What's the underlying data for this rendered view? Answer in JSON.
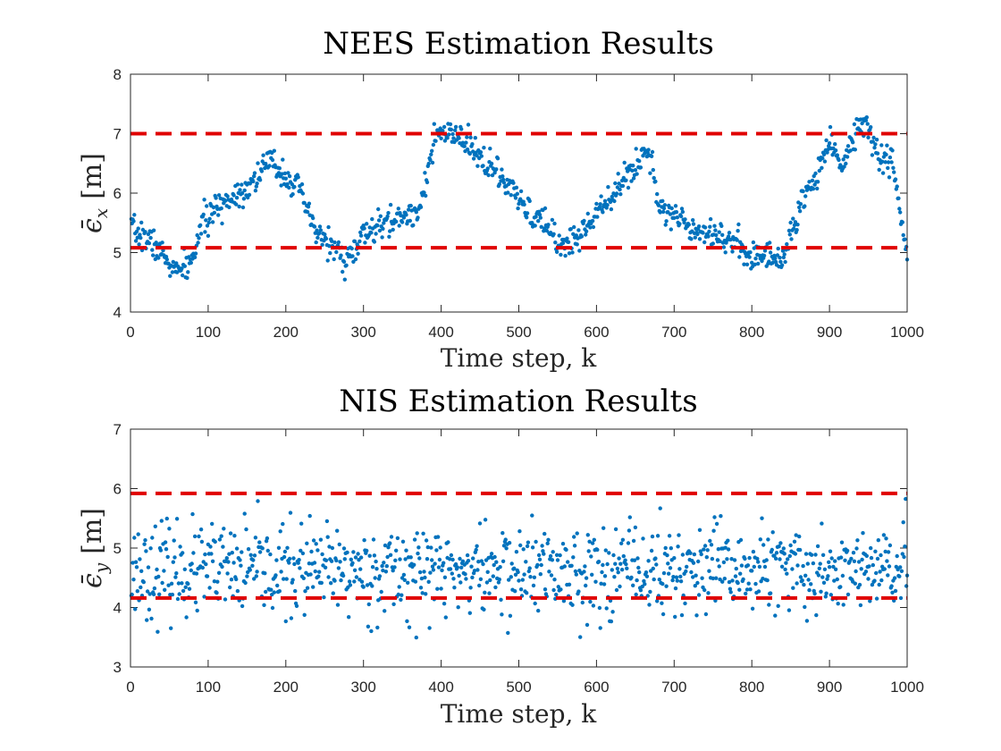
{
  "colors": {
    "points": "#0072BD",
    "bounds": "#E00000",
    "axis": "#262626"
  },
  "chart_data": [
    {
      "type": "scatter",
      "title": "NEES Estimation Results",
      "xlabel": "Time step, k",
      "ylabel": {
        "symbol": "ϵ̄",
        "subscript": "x",
        "unit": "[m]"
      },
      "xlim": [
        0,
        1000
      ],
      "ylim": [
        4,
        8
      ],
      "xticks": [
        "0",
        "100",
        "200",
        "300",
        "400",
        "500",
        "600",
        "700",
        "800",
        "900",
        "1000"
      ],
      "yticks": [
        "4",
        "5",
        "6",
        "7",
        "8"
      ],
      "bounds": [
        5.08,
        7.0
      ],
      "bounds_style": "red dashed",
      "n_points": 1000,
      "trend": [
        [
          0,
          5.4
        ],
        [
          30,
          5.15
        ],
        [
          60,
          4.65
        ],
        [
          80,
          4.85
        ],
        [
          90,
          5.45
        ],
        [
          120,
          5.85
        ],
        [
          150,
          6.1
        ],
        [
          180,
          6.55
        ],
        [
          200,
          6.3
        ],
        [
          215,
          6.1
        ],
        [
          240,
          5.3
        ],
        [
          255,
          5.2
        ],
        [
          275,
          4.85
        ],
        [
          290,
          5.05
        ],
        [
          300,
          5.3
        ],
        [
          340,
          5.55
        ],
        [
          370,
          5.7
        ],
        [
          395,
          7.0
        ],
        [
          420,
          6.95
        ],
        [
          460,
          6.5
        ],
        [
          490,
          6.05
        ],
        [
          510,
          5.7
        ],
        [
          540,
          5.4
        ],
        [
          555,
          5.1
        ],
        [
          580,
          5.3
        ],
        [
          610,
          5.9
        ],
        [
          630,
          6.1
        ],
        [
          660,
          6.65
        ],
        [
          670,
          6.7
        ],
        [
          680,
          5.8
        ],
        [
          720,
          5.45
        ],
        [
          760,
          5.3
        ],
        [
          800,
          4.95
        ],
        [
          840,
          4.9
        ],
        [
          860,
          5.7
        ],
        [
          890,
          6.5
        ],
        [
          900,
          7.0
        ],
        [
          915,
          6.4
        ],
        [
          930,
          6.9
        ],
        [
          945,
          7.3
        ],
        [
          955,
          6.85
        ],
        [
          965,
          6.6
        ],
        [
          980,
          6.55
        ],
        [
          992,
          5.6
        ],
        [
          1000,
          4.95
        ]
      ],
      "noise": 0.12,
      "seed": 7
    },
    {
      "type": "scatter",
      "title": "NIS Estimation Results",
      "xlabel": "Time step, k",
      "ylabel": {
        "symbol": "ϵ̄",
        "subscript": "y",
        "unit": "[m]"
      },
      "xlim": [
        0,
        1000
      ],
      "ylim": [
        3,
        7
      ],
      "xticks": [
        "0",
        "100",
        "200",
        "300",
        "400",
        "500",
        "600",
        "700",
        "800",
        "900",
        "1000"
      ],
      "yticks": [
        "3",
        "4",
        "5",
        "6",
        "7"
      ],
      "bounds": [
        4.16,
        5.92
      ],
      "bounds_style": "red dashed",
      "n_points": 1000,
      "trend": [
        [
          0,
          4.62
        ],
        [
          1000,
          4.62
        ]
      ],
      "noise": 0.38,
      "seed": 23
    }
  ]
}
